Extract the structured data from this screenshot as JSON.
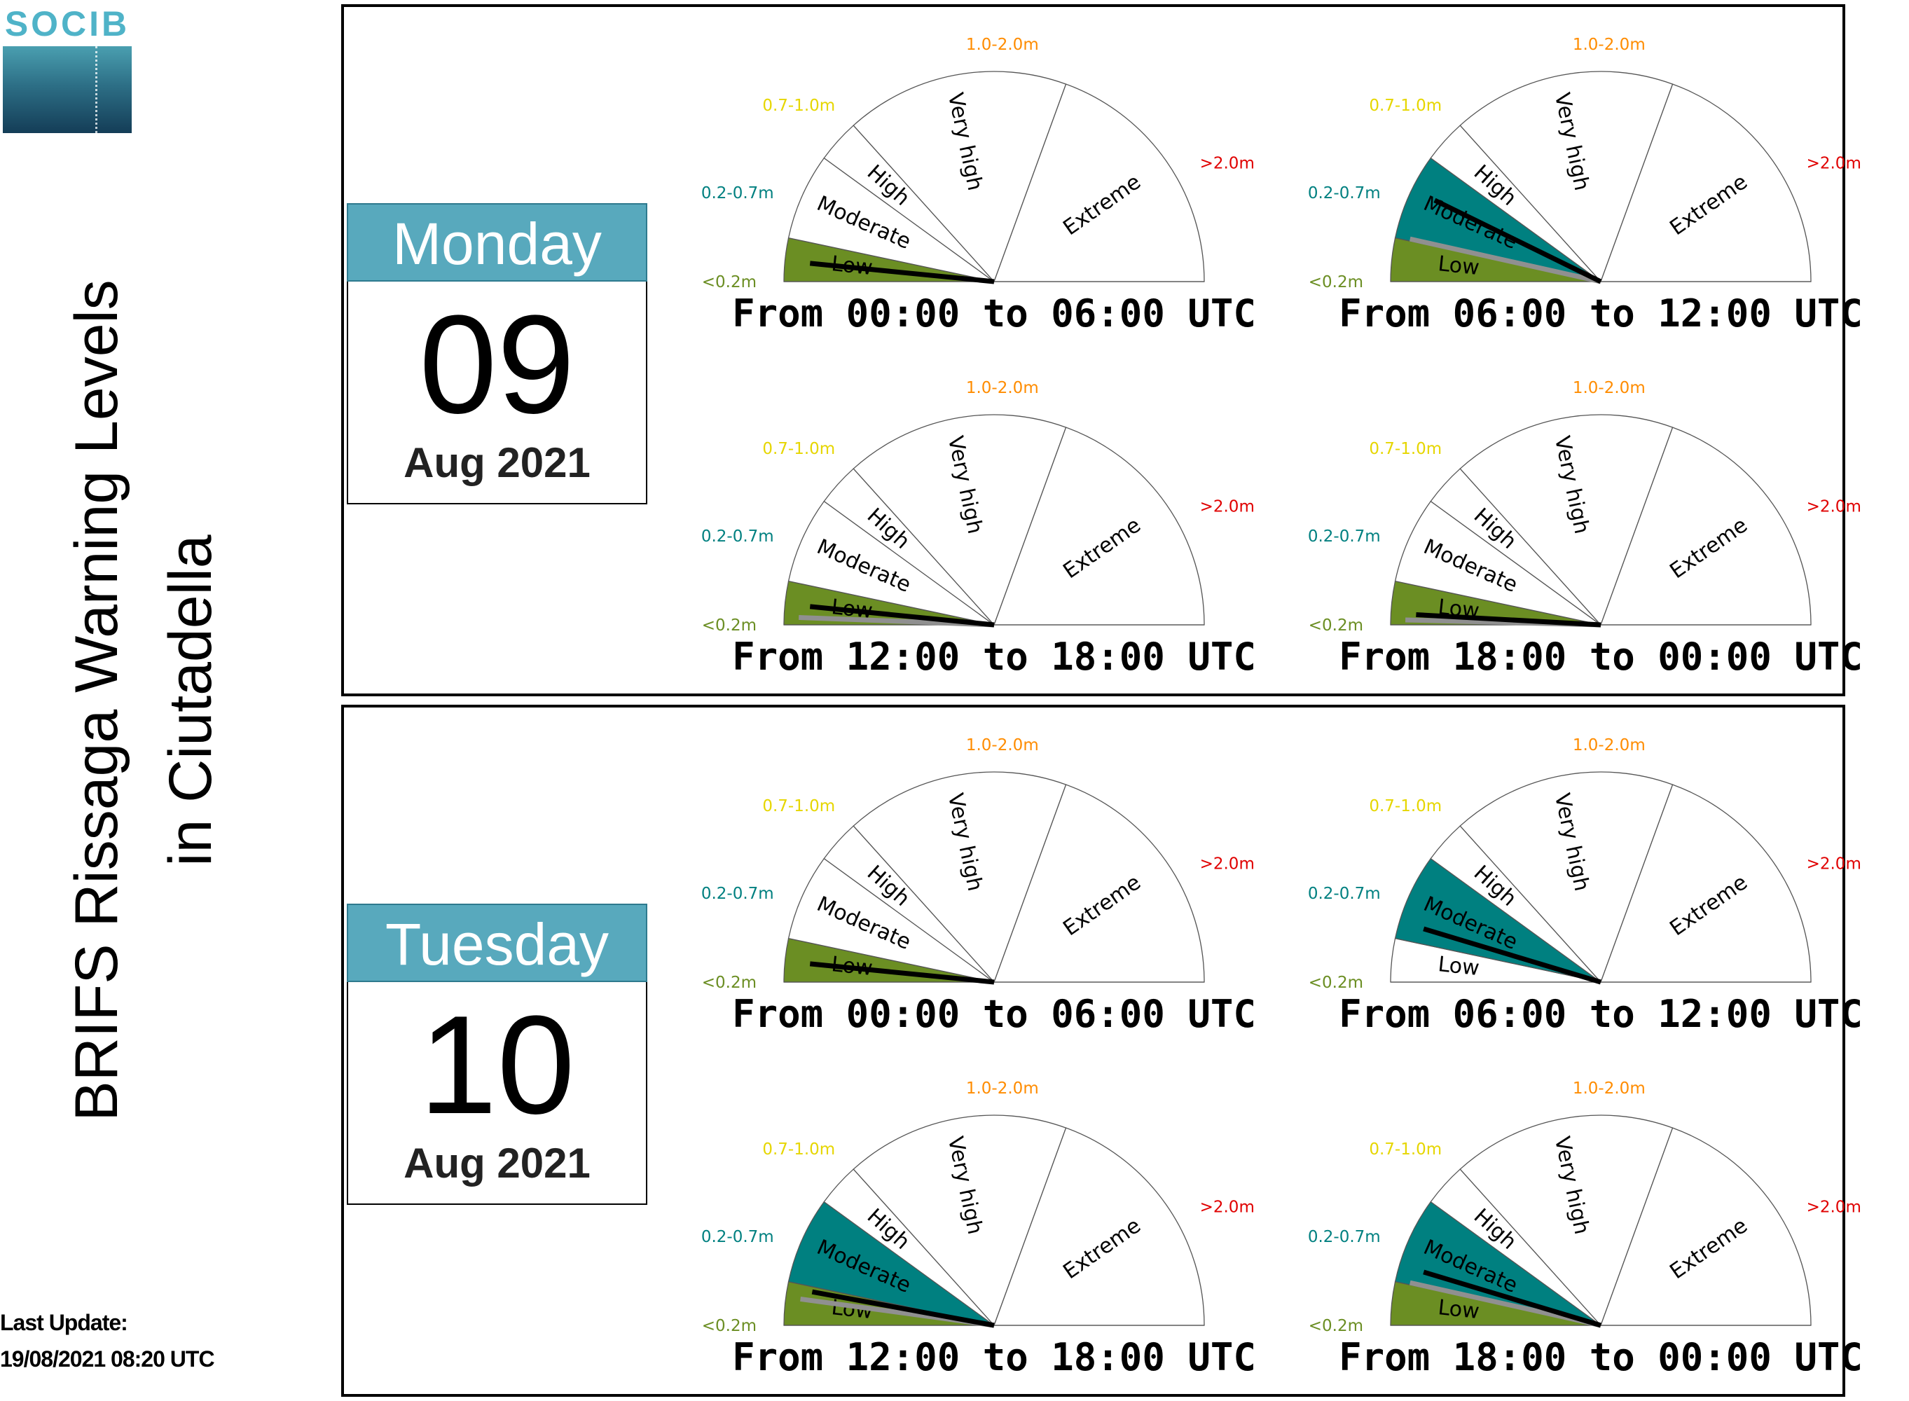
{
  "logo": {
    "text": "SOCIB"
  },
  "title": {
    "line1": "BRIFS Rissaga Warning Levels",
    "line2": "in Ciutadella"
  },
  "update": {
    "label": "Last Update:",
    "value": "19/08/2021 08:20 UTC"
  },
  "colors": {
    "low": "#6b8e23",
    "moderate": "#008080",
    "needle": "#000000",
    "needle_secondary": "#909090",
    "calendar_header": "#58a9bd"
  },
  "gauge_labels": {
    "segments": [
      "Low",
      "Moderate",
      "High",
      "Very high",
      "Extreme"
    ],
    "ranges": [
      "<0.2m",
      "0.2-0.7m",
      "0.7-1.0m",
      "1.0-2.0m",
      ">2.0m"
    ],
    "range_colors": [
      "#6b8e23",
      "#008080",
      "#e6d600",
      "#ff8c00",
      "#e00000"
    ]
  },
  "days": [
    {
      "weekday": "Monday",
      "day": "09",
      "month": "Aug 2021",
      "periods": [
        {
          "label": "From 00:00 to 06:00 UTC",
          "fill": [
            "low"
          ],
          "needle": 0.0315,
          "needle2": null
        },
        {
          "label": "From 06:00 to 12:00 UTC",
          "fill": [
            "low",
            "moderate"
          ],
          "needle": 0.145,
          "needle2": 0.07
        },
        {
          "label": "From 12:00 to 18:00 UTC",
          "fill": [
            "low"
          ],
          "needle": 0.0315,
          "needle2": 0.012
        },
        {
          "label": "From 18:00 to 00:00 UTC",
          "fill": [
            "low"
          ],
          "needle": 0.0175,
          "needle2": 0.008
        }
      ]
    },
    {
      "weekday": "Tuesday",
      "day": "10",
      "month": "Aug 2021",
      "periods": [
        {
          "label": "From 00:00 to 06:00 UTC",
          "fill": [
            "low"
          ],
          "needle": 0.0315,
          "needle2": null
        },
        {
          "label": "From 06:00 to 12:00 UTC",
          "fill": [
            "moderate"
          ],
          "needle": 0.093,
          "needle2": null
        },
        {
          "label": "From 12:00 to 18:00 UTC",
          "fill": [
            "low",
            "moderate"
          ],
          "needle": 0.058,
          "needle2": 0.043
        },
        {
          "label": "From 18:00 to 00:00 UTC",
          "fill": [
            "low",
            "moderate"
          ],
          "needle": 0.093,
          "needle2": 0.07
        }
      ]
    }
  ]
}
